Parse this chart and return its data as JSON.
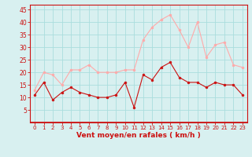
{
  "x": [
    0,
    1,
    2,
    3,
    4,
    5,
    6,
    7,
    8,
    9,
    10,
    11,
    12,
    13,
    14,
    15,
    16,
    17,
    18,
    19,
    20,
    21,
    22,
    23
  ],
  "wind_avg": [
    11,
    16,
    9,
    12,
    14,
    12,
    11,
    10,
    10,
    11,
    16,
    6,
    19,
    17,
    22,
    24,
    18,
    16,
    16,
    14,
    16,
    15,
    15,
    11
  ],
  "wind_gust": [
    13,
    20,
    19,
    15,
    21,
    21,
    23,
    20,
    20,
    20,
    21,
    21,
    33,
    38,
    41,
    43,
    37,
    30,
    40,
    26,
    31,
    32,
    23,
    22
  ],
  "bg_color": "#d8f0f0",
  "grid_color": "#aadddd",
  "line_avg_color": "#cc1111",
  "line_gust_color": "#ffaaaa",
  "xlabel": "Vent moyen/en rafales ( km/h )",
  "xlabel_color": "#cc1111",
  "tick_color": "#cc1111",
  "ylim": [
    0,
    47
  ],
  "yticks": [
    5,
    10,
    15,
    20,
    25,
    30,
    35,
    40,
    45
  ],
  "xlim": [
    -0.5,
    23.5
  ]
}
